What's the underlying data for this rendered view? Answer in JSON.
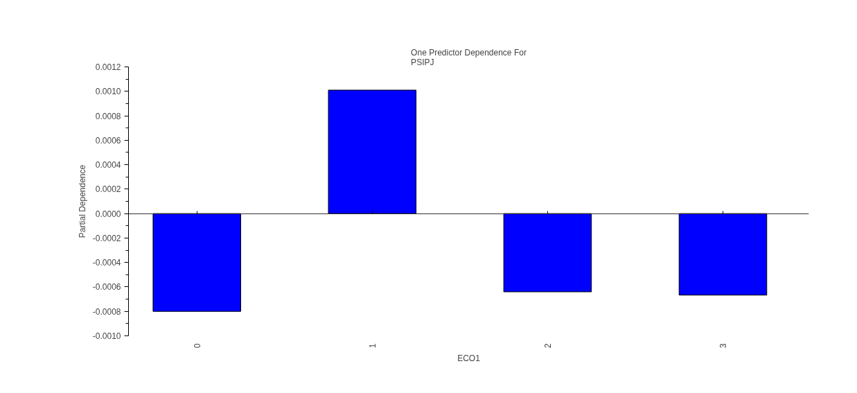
{
  "chart_data": {
    "type": "bar",
    "title": "One Predictor Dependence For\nPSIPJ",
    "xlabel": "ECO1",
    "ylabel": "Partial Dependence",
    "categories": [
      "0",
      "1",
      "2",
      "3"
    ],
    "series": [
      {
        "color": "#0000ff",
        "values": [
          -0.0008,
          0.00101,
          -0.00064,
          -0.000667
        ]
      }
    ],
    "ylim": [
      -0.001,
      0.0012
    ],
    "yticks": [
      {
        "value": -0.001,
        "label": "-0.0010"
      },
      {
        "value": -0.0008,
        "label": "-0.0008"
      },
      {
        "value": -0.0006,
        "label": "-0.0006"
      },
      {
        "value": -0.0004,
        "label": "-0.0004"
      },
      {
        "value": -0.0002,
        "label": "-0.0002"
      },
      {
        "value": 0,
        "label": "0.0000"
      },
      {
        "value": 0.0002,
        "label": "0.0002"
      },
      {
        "value": 0.0004,
        "label": "0.0004"
      },
      {
        "value": 0.0006,
        "label": "0.0006"
      },
      {
        "value": 0.0008,
        "label": "0.0008"
      },
      {
        "value": 0.001,
        "label": "0.0010"
      },
      {
        "value": 0.0012,
        "label": "0.0012"
      }
    ]
  }
}
